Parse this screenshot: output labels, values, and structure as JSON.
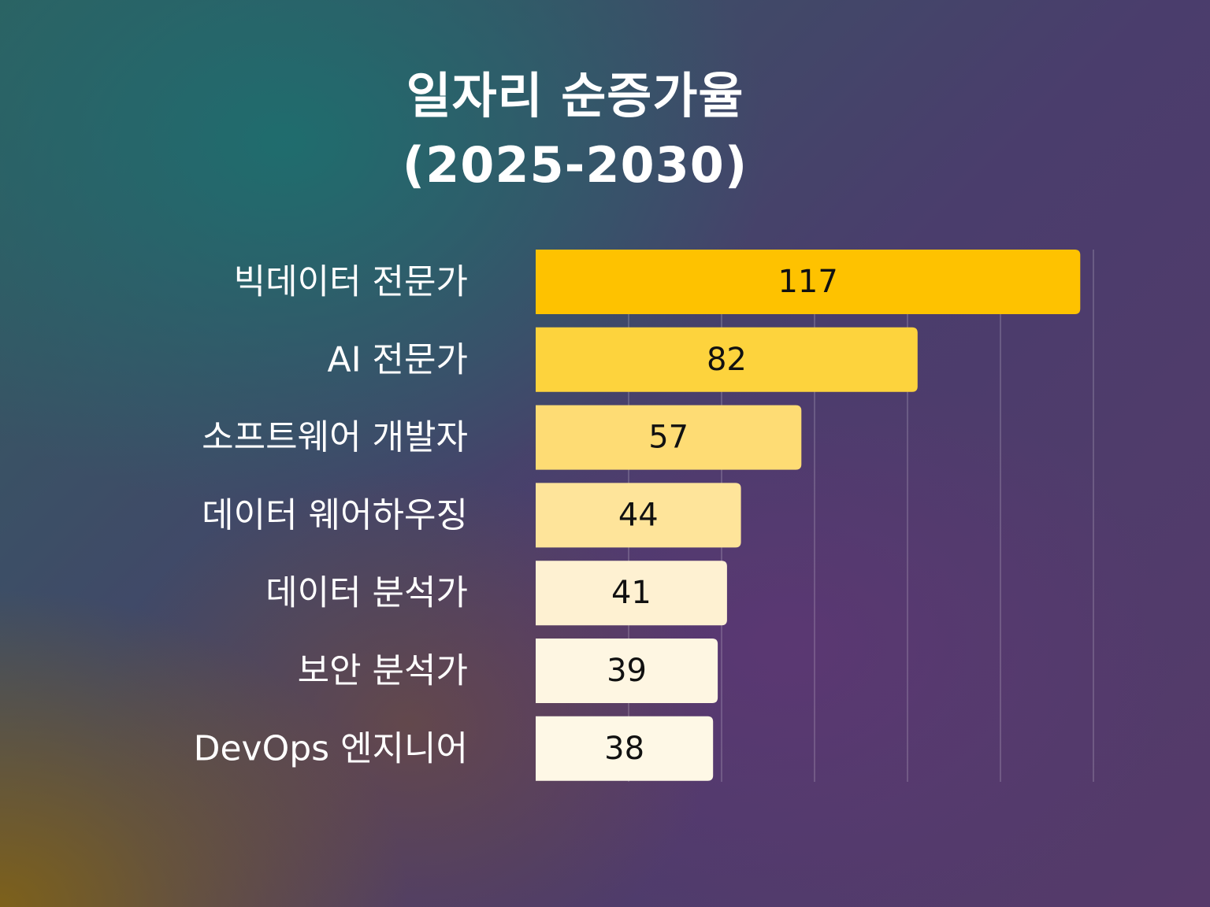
{
  "title_line1": "일자리 순증가율",
  "title_line2": "(2025-2030)",
  "colors": {
    "bars": [
      "#fec200",
      "#fdd33d",
      "#fedc74",
      "#fee49a",
      "#fef1d2",
      "#fef6e2",
      "#fef8e6"
    ],
    "category_text": "#ffffff",
    "value_text": "#111111"
  },
  "chart_data": {
    "type": "bar",
    "orientation": "horizontal",
    "title": "일자리 순증가율 (2025-2030)",
    "categories": [
      "빅데이터 전문가",
      "AI 전문가",
      "소프트웨어 개발자",
      "데이터 웨어하우징",
      "데이터 분석가",
      "보안 분석가",
      "DevOps 엔지니어"
    ],
    "values": [
      117,
      82,
      57,
      44,
      41,
      39,
      38
    ],
    "xlim": [
      0,
      120
    ],
    "grid": true,
    "legend": false,
    "data_labels": true
  }
}
